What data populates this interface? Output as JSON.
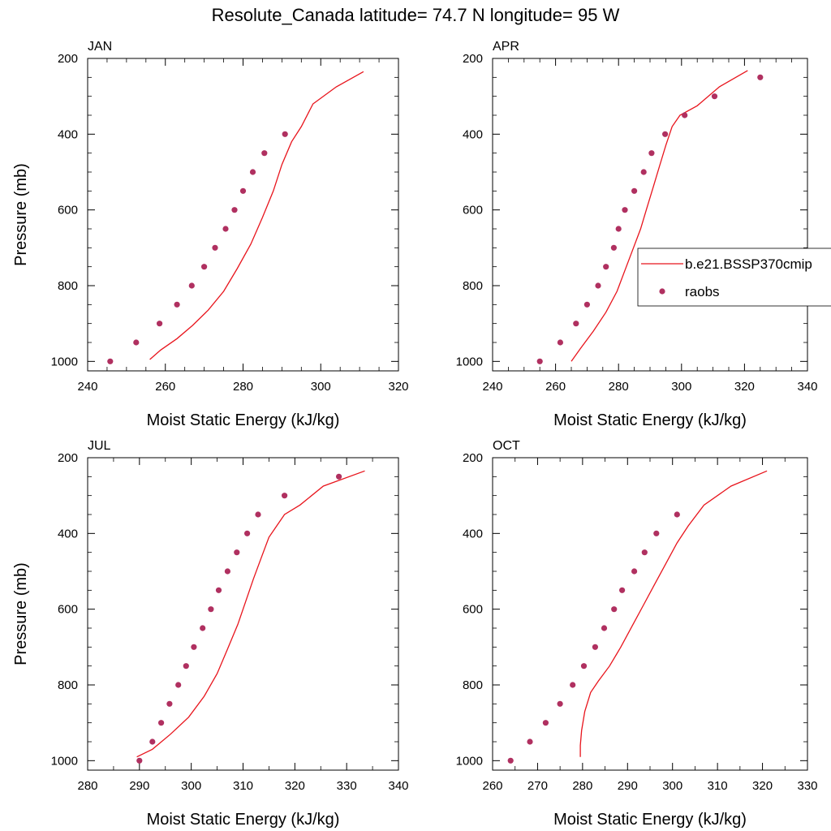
{
  "title": "Resolute_Canada  latitude= 74.7 N longitude= 95 W",
  "colors": {
    "model": "#e8141c",
    "raobs": "#b03060",
    "axis": "#000000"
  },
  "legend": {
    "model_label": "b.e21.BSSP370cmip",
    "raobs_label": "raobs",
    "placement": "right, middle of APR panel"
  },
  "chart_data": [
    {
      "type": "scatter",
      "title": "JAN",
      "xlabel": "Moist Static Energy (kJ/kg)",
      "ylabel": "Pressure (mb)",
      "xlim": [
        240,
        320
      ],
      "ylim": [
        1025,
        200
      ],
      "y_reversed": true,
      "xticks": [
        240,
        260,
        280,
        300,
        320
      ],
      "yticks": [
        200,
        400,
        600,
        800,
        1000
      ],
      "series": [
        {
          "name": "b.e21.BSSP370cmip",
          "kind": "line",
          "x": [
            256.0,
            258.8,
            263.0,
            267.0,
            271.0,
            275.0,
            278.5,
            282.0,
            285.0,
            287.8,
            290.0,
            292.5,
            295.0,
            298.0,
            304.0,
            311.0
          ],
          "y": [
            995,
            970,
            940,
            905,
            865,
            815,
            755,
            690,
            620,
            550,
            480,
            420,
            380,
            320,
            275,
            235
          ]
        },
        {
          "name": "raobs",
          "kind": "points",
          "x": [
            245.8,
            252.5,
            258.5,
            263.0,
            266.8,
            270.0,
            272.8,
            275.5,
            277.8,
            280.0,
            282.5,
            285.5,
            290.8
          ],
          "y": [
            1000,
            950,
            900,
            850,
            800,
            750,
            700,
            650,
            600,
            550,
            500,
            450,
            400
          ]
        }
      ]
    },
    {
      "type": "scatter",
      "title": "APR",
      "xlabel": "Moist Static Energy (kJ/kg)",
      "ylabel": "",
      "xlim": [
        240,
        340
      ],
      "ylim": [
        1025,
        200
      ],
      "y_reversed": true,
      "xticks": [
        240,
        260,
        280,
        300,
        320,
        340
      ],
      "yticks": [
        200,
        400,
        600,
        800,
        1000
      ],
      "series": [
        {
          "name": "b.e21.BSSP370cmip",
          "kind": "line",
          "x": [
            265.0,
            268.0,
            272.0,
            276.0,
            279.5,
            282.0,
            284.5,
            287.0,
            289.0,
            291.0,
            293.0,
            295.0,
            297.0,
            299.5,
            305.0,
            312.0,
            321.0
          ],
          "y": [
            1000,
            965,
            920,
            870,
            815,
            760,
            705,
            650,
            595,
            540,
            485,
            430,
            380,
            350,
            325,
            275,
            232
          ]
        },
        {
          "name": "raobs",
          "kind": "points",
          "x": [
            255.0,
            261.5,
            266.5,
            270.0,
            273.5,
            276.0,
            278.5,
            280.0,
            282.0,
            285.0,
            288.0,
            290.5,
            294.8,
            301.0,
            310.5,
            325.0
          ],
          "y": [
            1000,
            950,
            900,
            850,
            800,
            750,
            700,
            650,
            600,
            550,
            500,
            450,
            400,
            350,
            300,
            250
          ]
        }
      ]
    },
    {
      "type": "scatter",
      "title": "JUL",
      "xlabel": "Moist Static Energy (kJ/kg)",
      "ylabel": "Pressure (mb)",
      "xlim": [
        280,
        340
      ],
      "ylim": [
        1025,
        200
      ],
      "y_reversed": true,
      "xticks": [
        280,
        290,
        300,
        310,
        320,
        330,
        340
      ],
      "yticks": [
        200,
        400,
        600,
        800,
        1000
      ],
      "series": [
        {
          "name": "b.e21.BSSP370cmip",
          "kind": "line",
          "x": [
            289.5,
            292.5,
            296.0,
            299.5,
            302.5,
            305.0,
            307.0,
            309.0,
            310.5,
            312.0,
            313.5,
            315.0,
            316.5,
            318.0,
            321.0,
            325.5,
            333.5
          ],
          "y": [
            990,
            970,
            930,
            885,
            830,
            770,
            705,
            640,
            580,
            520,
            465,
            410,
            380,
            350,
            325,
            275,
            235
          ]
        },
        {
          "name": "raobs",
          "kind": "points",
          "x": [
            290.0,
            292.5,
            294.2,
            295.8,
            297.5,
            299.0,
            300.5,
            302.2,
            303.8,
            305.3,
            307.0,
            308.8,
            310.8,
            312.9,
            318.0,
            328.5
          ],
          "y": [
            1000,
            950,
            900,
            850,
            800,
            750,
            700,
            650,
            600,
            550,
            500,
            450,
            400,
            350,
            300,
            250
          ]
        }
      ]
    },
    {
      "type": "scatter",
      "title": "OCT",
      "xlabel": "Moist Static Energy (kJ/kg)",
      "ylabel": "",
      "xlim": [
        260,
        330
      ],
      "ylim": [
        1025,
        200
      ],
      "y_reversed": true,
      "xticks": [
        260,
        270,
        280,
        290,
        300,
        310,
        320,
        330
      ],
      "yticks": [
        200,
        400,
        600,
        800,
        1000
      ],
      "series": [
        {
          "name": "b.e21.BSSP370cmip",
          "kind": "line",
          "x": [
            279.5,
            279.5,
            279.8,
            280.5,
            281.8,
            283.5,
            286.0,
            288.5,
            291.0,
            293.5,
            296.0,
            298.5,
            301.0,
            303.5,
            307.0,
            313.0,
            321.0
          ],
          "y": [
            990,
            960,
            920,
            870,
            820,
            790,
            750,
            700,
            645,
            590,
            535,
            480,
            425,
            380,
            325,
            275,
            235
          ]
        },
        {
          "name": "raobs",
          "kind": "points",
          "x": [
            264.0,
            268.3,
            271.8,
            275.0,
            277.8,
            280.3,
            282.8,
            284.8,
            287.0,
            288.8,
            291.5,
            293.8,
            296.4,
            301.0
          ],
          "y": [
            1000,
            950,
            900,
            850,
            800,
            750,
            700,
            650,
            600,
            550,
            500,
            450,
            400,
            350
          ]
        }
      ]
    }
  ]
}
